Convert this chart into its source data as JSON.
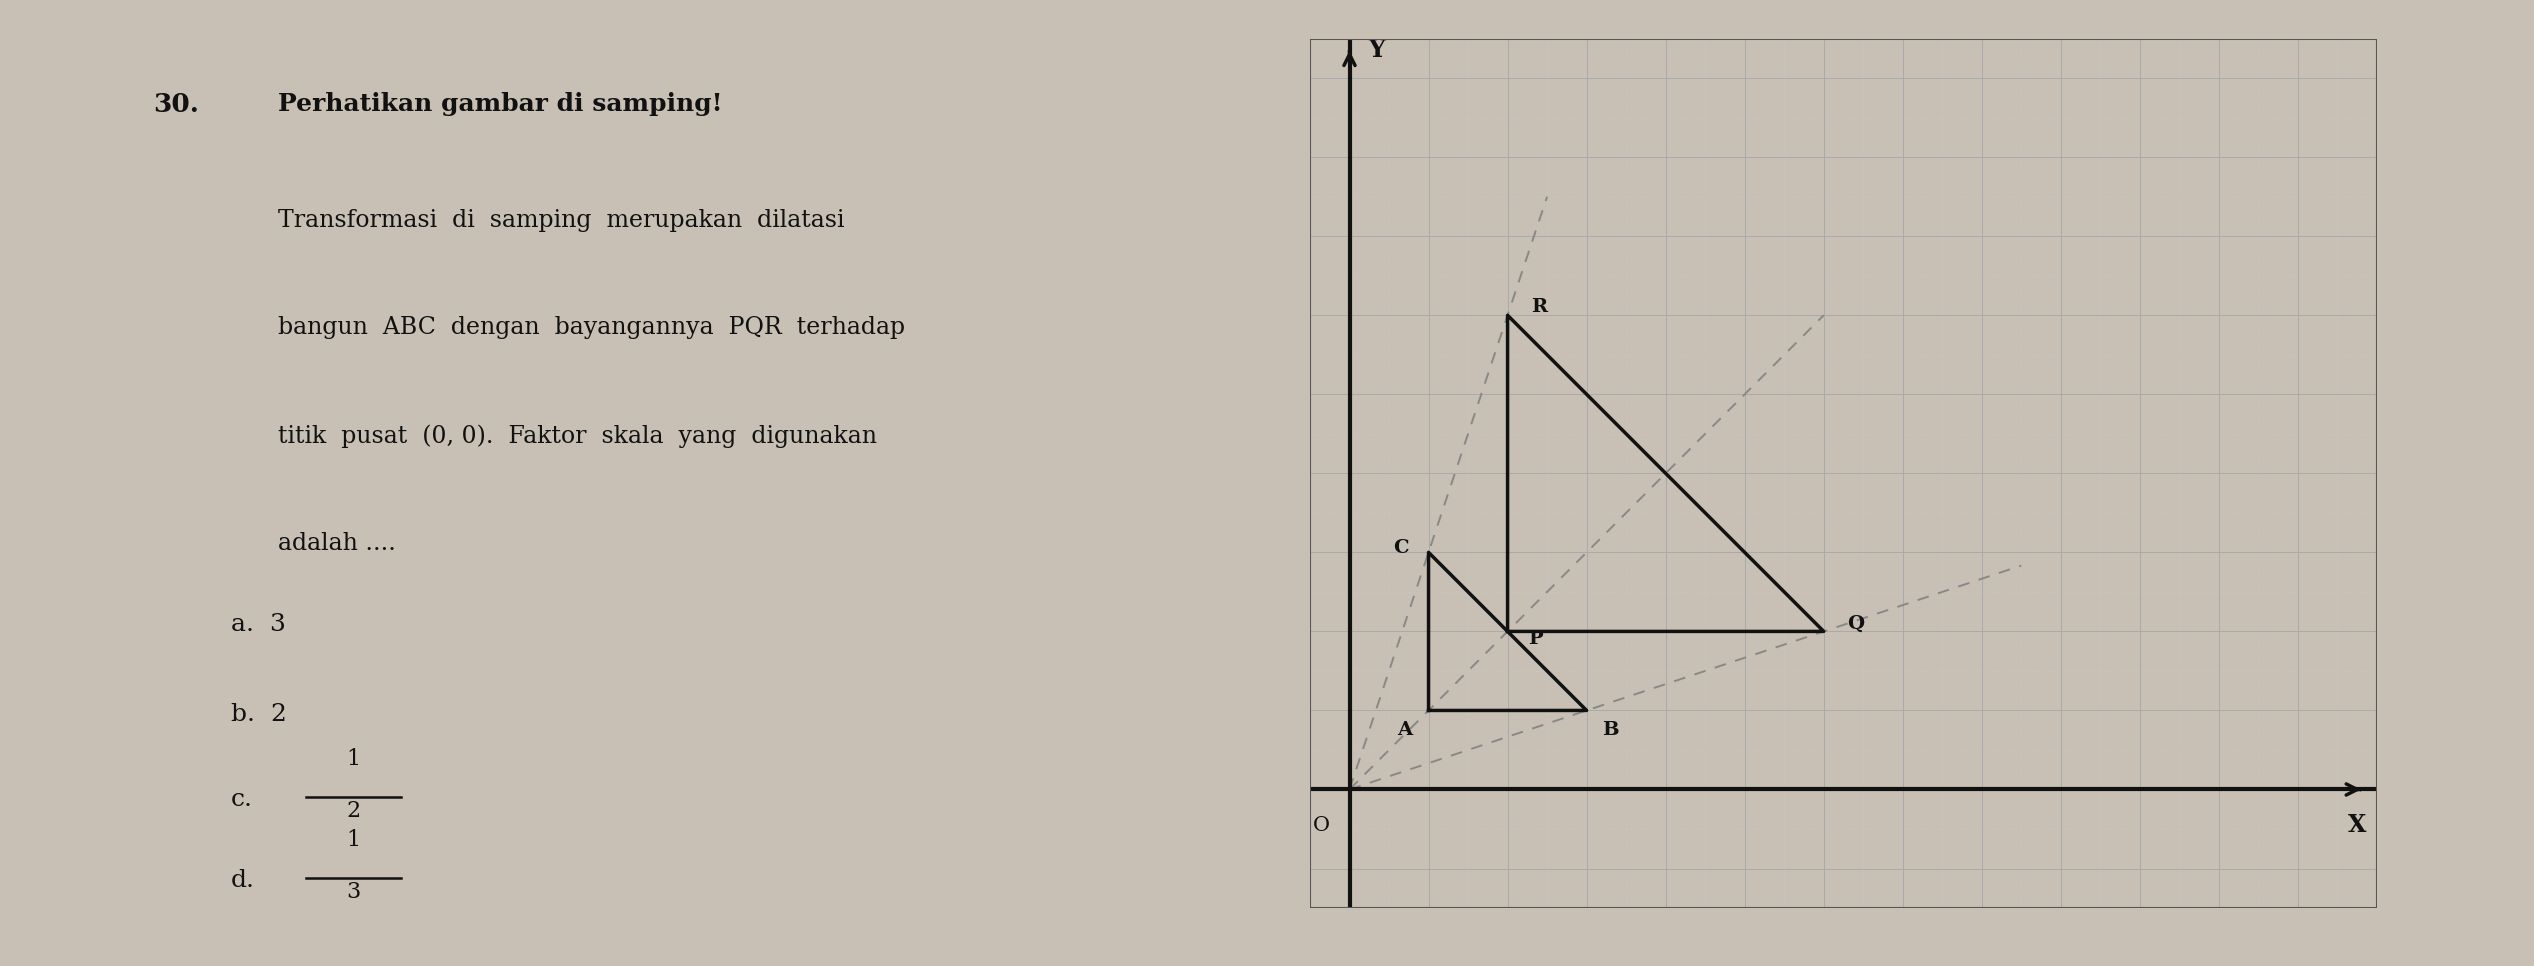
{
  "question_number": "30.",
  "question_text_line1": "Perhatikan gambar di samping!",
  "question_text_line2": "Transformasi  di  samping  merupakan  dilatasi",
  "question_text_line3": "bangun  ABC  dengan  bayangannya  PQR  terhadap",
  "question_text_line4": "titik  pusat  (0, 0).  Faktor  skala  yang  digunakan",
  "question_text_line5": "adalah ....",
  "bg_color": "#c8c0b4",
  "paper_color": "#f2ede6",
  "grid_color": "#aaaaaa",
  "grid_minor_color": "#cccccc",
  "axis_color": "#111111",
  "triangle_color": "#111111",
  "dashed_color": "#888888",
  "A": [
    1,
    1
  ],
  "B": [
    3,
    1
  ],
  "C": [
    1,
    3
  ],
  "P": [
    2,
    2
  ],
  "Q": [
    6,
    2
  ],
  "R": [
    2,
    6
  ],
  "xmin": -0.5,
  "xmax": 13,
  "ymin": -1.5,
  "ymax": 9.5
}
